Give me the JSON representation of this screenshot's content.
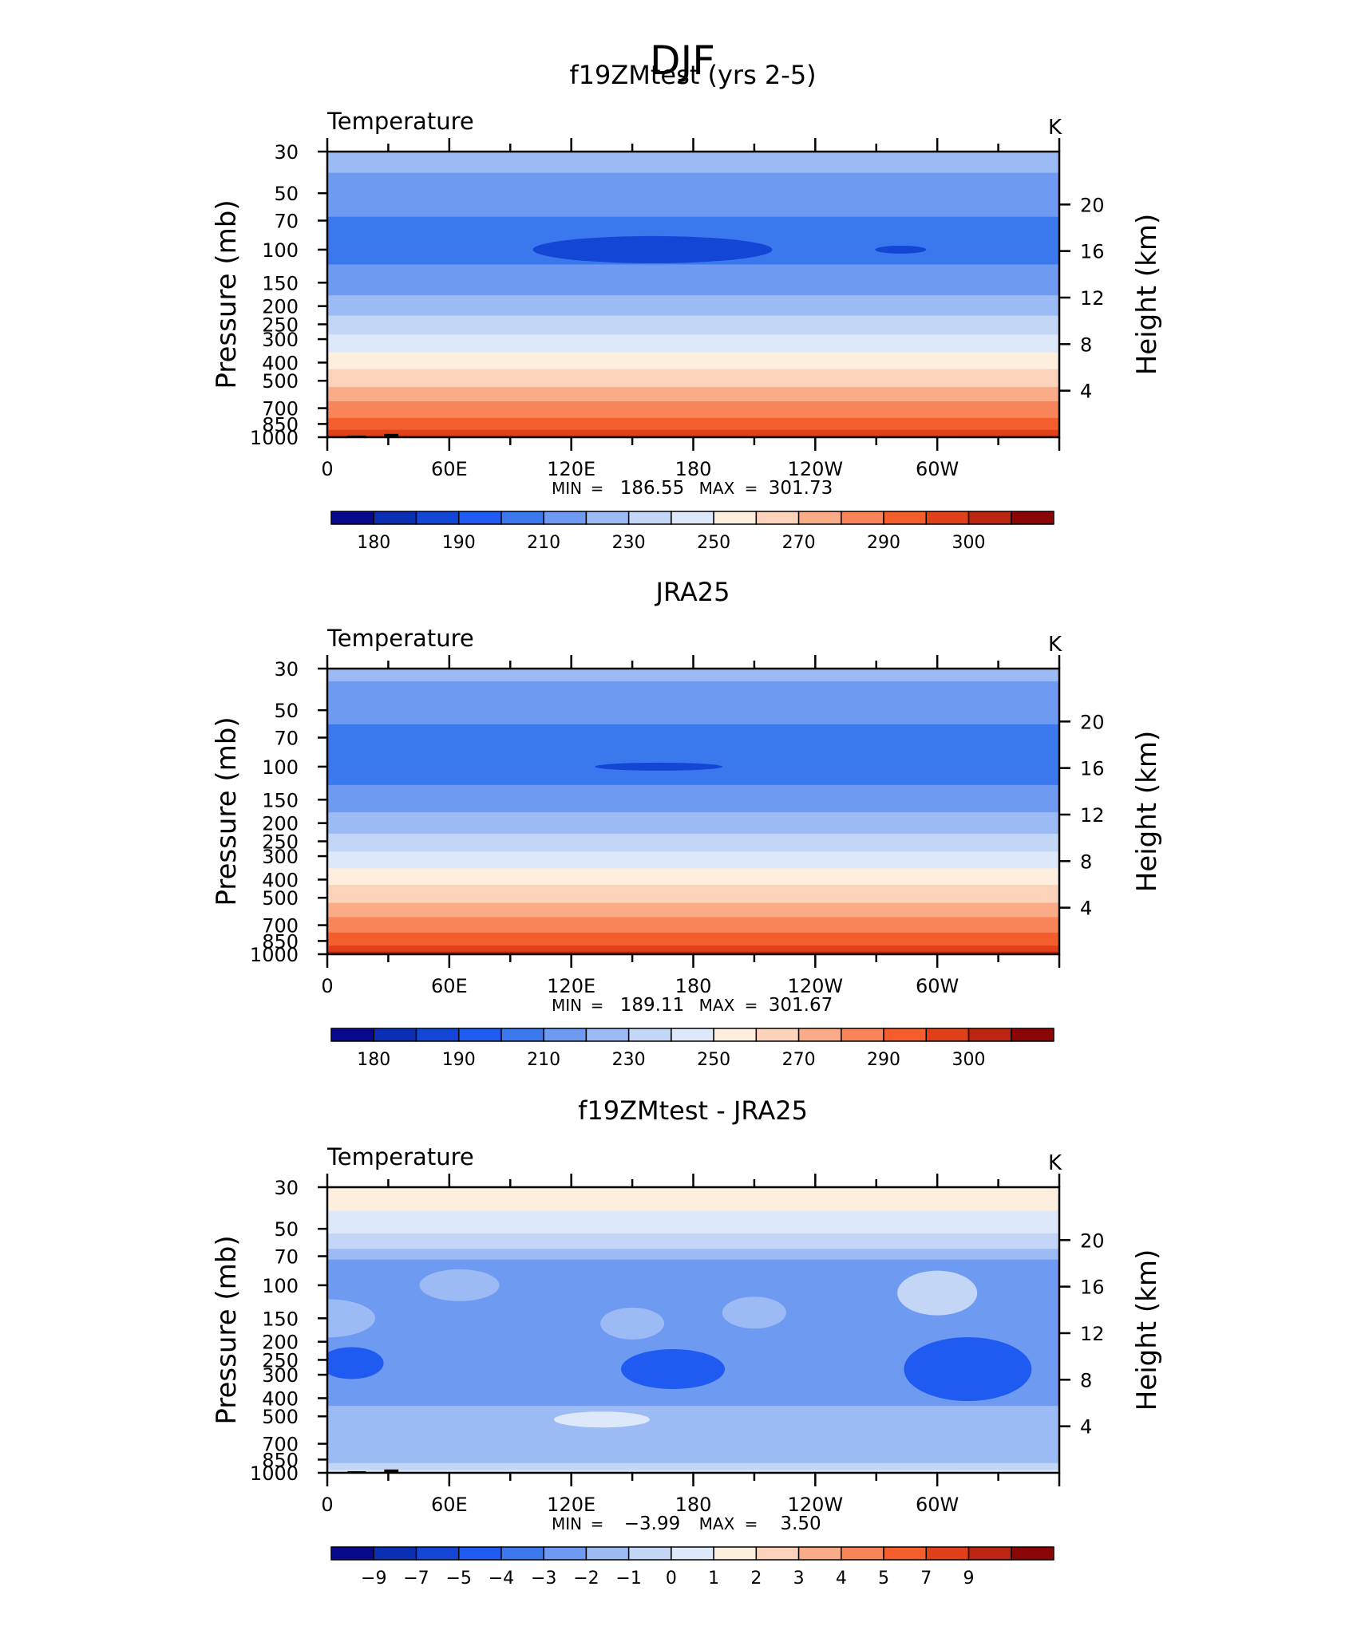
{
  "figure": {
    "title": "DJF"
  },
  "colors": {
    "temperature_palette": [
      "#08088a",
      "#0a2fb3",
      "#1446d6",
      "#1f5bf0",
      "#3b78ee",
      "#6e9af1",
      "#9cbaf3",
      "#c3d6f6",
      "#dde9fb",
      "#fdeede",
      "#fcd2ba",
      "#faac88",
      "#f8855a",
      "#f45d2c",
      "#e0401a",
      "#bb2612",
      "#8a0505"
    ],
    "difference_palette": [
      "#08088a",
      "#0a2fb3",
      "#1446d6",
      "#1f5bf0",
      "#3b78ee",
      "#6e9af1",
      "#9cbaf3",
      "#c3d6f6",
      "#dde9fb",
      "#fdeede",
      "#fcd2ba",
      "#faac88",
      "#f8855a",
      "#f45d2c",
      "#e0401a",
      "#bb2612",
      "#8a0505"
    ],
    "land_mask": "#000000"
  },
  "chart_data": [
    {
      "type": "heatmap",
      "title": "f19ZMtest (yrs 2-5)",
      "left_label": "Temperature",
      "right_label": "K",
      "ylabel": "Pressure (mb)",
      "y2label": "Height (km)",
      "x_ticks": [
        "0",
        "60E",
        "120E",
        "180",
        "120W",
        "60W"
      ],
      "y_ticks": [
        "30",
        "50",
        "70",
        "100",
        "150",
        "200",
        "250",
        "300",
        "400",
        "500",
        "700",
        "850",
        "1000"
      ],
      "y2_ticks": [
        "20",
        "16",
        "12",
        "8",
        "4"
      ],
      "stats": {
        "min_label": "MIN",
        "min": "186.55",
        "max_label": "MAX",
        "max": "301.73"
      },
      "colorbar_labels": [
        "180",
        "190",
        "210",
        "230",
        "250",
        "270",
        "290",
        "300"
      ],
      "levels": [
        175,
        180,
        185,
        190,
        200,
        210,
        220,
        230,
        240,
        250,
        260,
        270,
        280,
        290,
        295,
        300
      ],
      "profile": [
        [
          30,
          213
        ],
        [
          45,
          208
        ],
        [
          60,
          201
        ],
        [
          80,
          198
        ],
        [
          100,
          196
        ],
        [
          120,
          200
        ],
        [
          150,
          205
        ],
        [
          200,
          215
        ],
        [
          250,
          225
        ],
        [
          300,
          232
        ],
        [
          400,
          247
        ],
        [
          500,
          256
        ],
        [
          600,
          266
        ],
        [
          700,
          275
        ],
        [
          850,
          283
        ],
        [
          925,
          291
        ],
        [
          1000,
          296
        ]
      ],
      "xlim": [
        0,
        360
      ],
      "ylim": [
        1000,
        30
      ]
    },
    {
      "type": "heatmap",
      "title": "JRA25",
      "left_label": "Temperature",
      "right_label": "K",
      "ylabel": "Pressure (mb)",
      "y2label": "Height (km)",
      "x_ticks": [
        "0",
        "60E",
        "120E",
        "180",
        "120W",
        "60W"
      ],
      "y_ticks": [
        "30",
        "50",
        "70",
        "100",
        "150",
        "200",
        "250",
        "300",
        "400",
        "500",
        "700",
        "850",
        "1000"
      ],
      "y2_ticks": [
        "20",
        "16",
        "12",
        "8",
        "4"
      ],
      "stats": {
        "min_label": "MIN",
        "min": "189.11",
        "max_label": "MAX",
        "max": "301.67"
      },
      "colorbar_labels": [
        "180",
        "190",
        "210",
        "230",
        "250",
        "270",
        "290",
        "300"
      ],
      "levels": [
        175,
        180,
        185,
        190,
        200,
        210,
        220,
        230,
        240,
        250,
        260,
        270,
        280,
        290,
        295,
        300
      ],
      "profile": [
        [
          30,
          212
        ],
        [
          45,
          206
        ],
        [
          60,
          200
        ],
        [
          80,
          198
        ],
        [
          100,
          197
        ],
        [
          120,
          199
        ],
        [
          150,
          205
        ],
        [
          200,
          215
        ],
        [
          250,
          224
        ],
        [
          300,
          233
        ],
        [
          400,
          247
        ],
        [
          500,
          257
        ],
        [
          600,
          267
        ],
        [
          700,
          276
        ],
        [
          850,
          285
        ],
        [
          925,
          292
        ],
        [
          1000,
          297
        ]
      ],
      "xlim": [
        0,
        360
      ],
      "ylim": [
        1000,
        30
      ]
    },
    {
      "type": "heatmap",
      "title": "f19ZMtest - JRA25",
      "left_label": "Temperature",
      "right_label": "K",
      "ylabel": "Pressure (mb)",
      "y2label": "Height (km)",
      "x_ticks": [
        "0",
        "60E",
        "120E",
        "180",
        "120W",
        "60W"
      ],
      "y_ticks": [
        "30",
        "50",
        "70",
        "100",
        "150",
        "200",
        "250",
        "300",
        "400",
        "500",
        "700",
        "850",
        "1000"
      ],
      "y2_ticks": [
        "20",
        "16",
        "12",
        "8",
        "4"
      ],
      "stats": {
        "min_label": "MIN",
        "min": "−3.99",
        "max_label": "MAX",
        "max": "3.50"
      },
      "colorbar_labels": [
        "−9",
        "−7",
        "−5",
        "−4",
        "−3",
        "−2",
        "−1",
        "0",
        "1",
        "2",
        "3",
        "4",
        "5",
        "7",
        "9"
      ],
      "levels": [
        -9,
        -7,
        -5,
        -4,
        -3,
        -2,
        -1,
        0,
        1,
        2,
        3,
        4,
        5,
        7,
        9
      ],
      "profile": [
        [
          30,
          1.4
        ],
        [
          40,
          1.0
        ],
        [
          50,
          0.3
        ],
        [
          60,
          -0.6
        ],
        [
          75,
          -2.2
        ],
        [
          100,
          -2.6
        ],
        [
          150,
          -2.4
        ],
        [
          200,
          -2.8
        ],
        [
          250,
          -3.0
        ],
        [
          300,
          -2.8
        ],
        [
          400,
          -2.3
        ],
        [
          500,
          -1.6
        ],
        [
          600,
          -1.5
        ],
        [
          700,
          -1.6
        ],
        [
          850,
          -1.3
        ],
        [
          925,
          -0.8
        ],
        [
          1000,
          0.4
        ]
      ],
      "xlim": [
        0,
        360
      ],
      "ylim": [
        1000,
        30
      ]
    }
  ]
}
